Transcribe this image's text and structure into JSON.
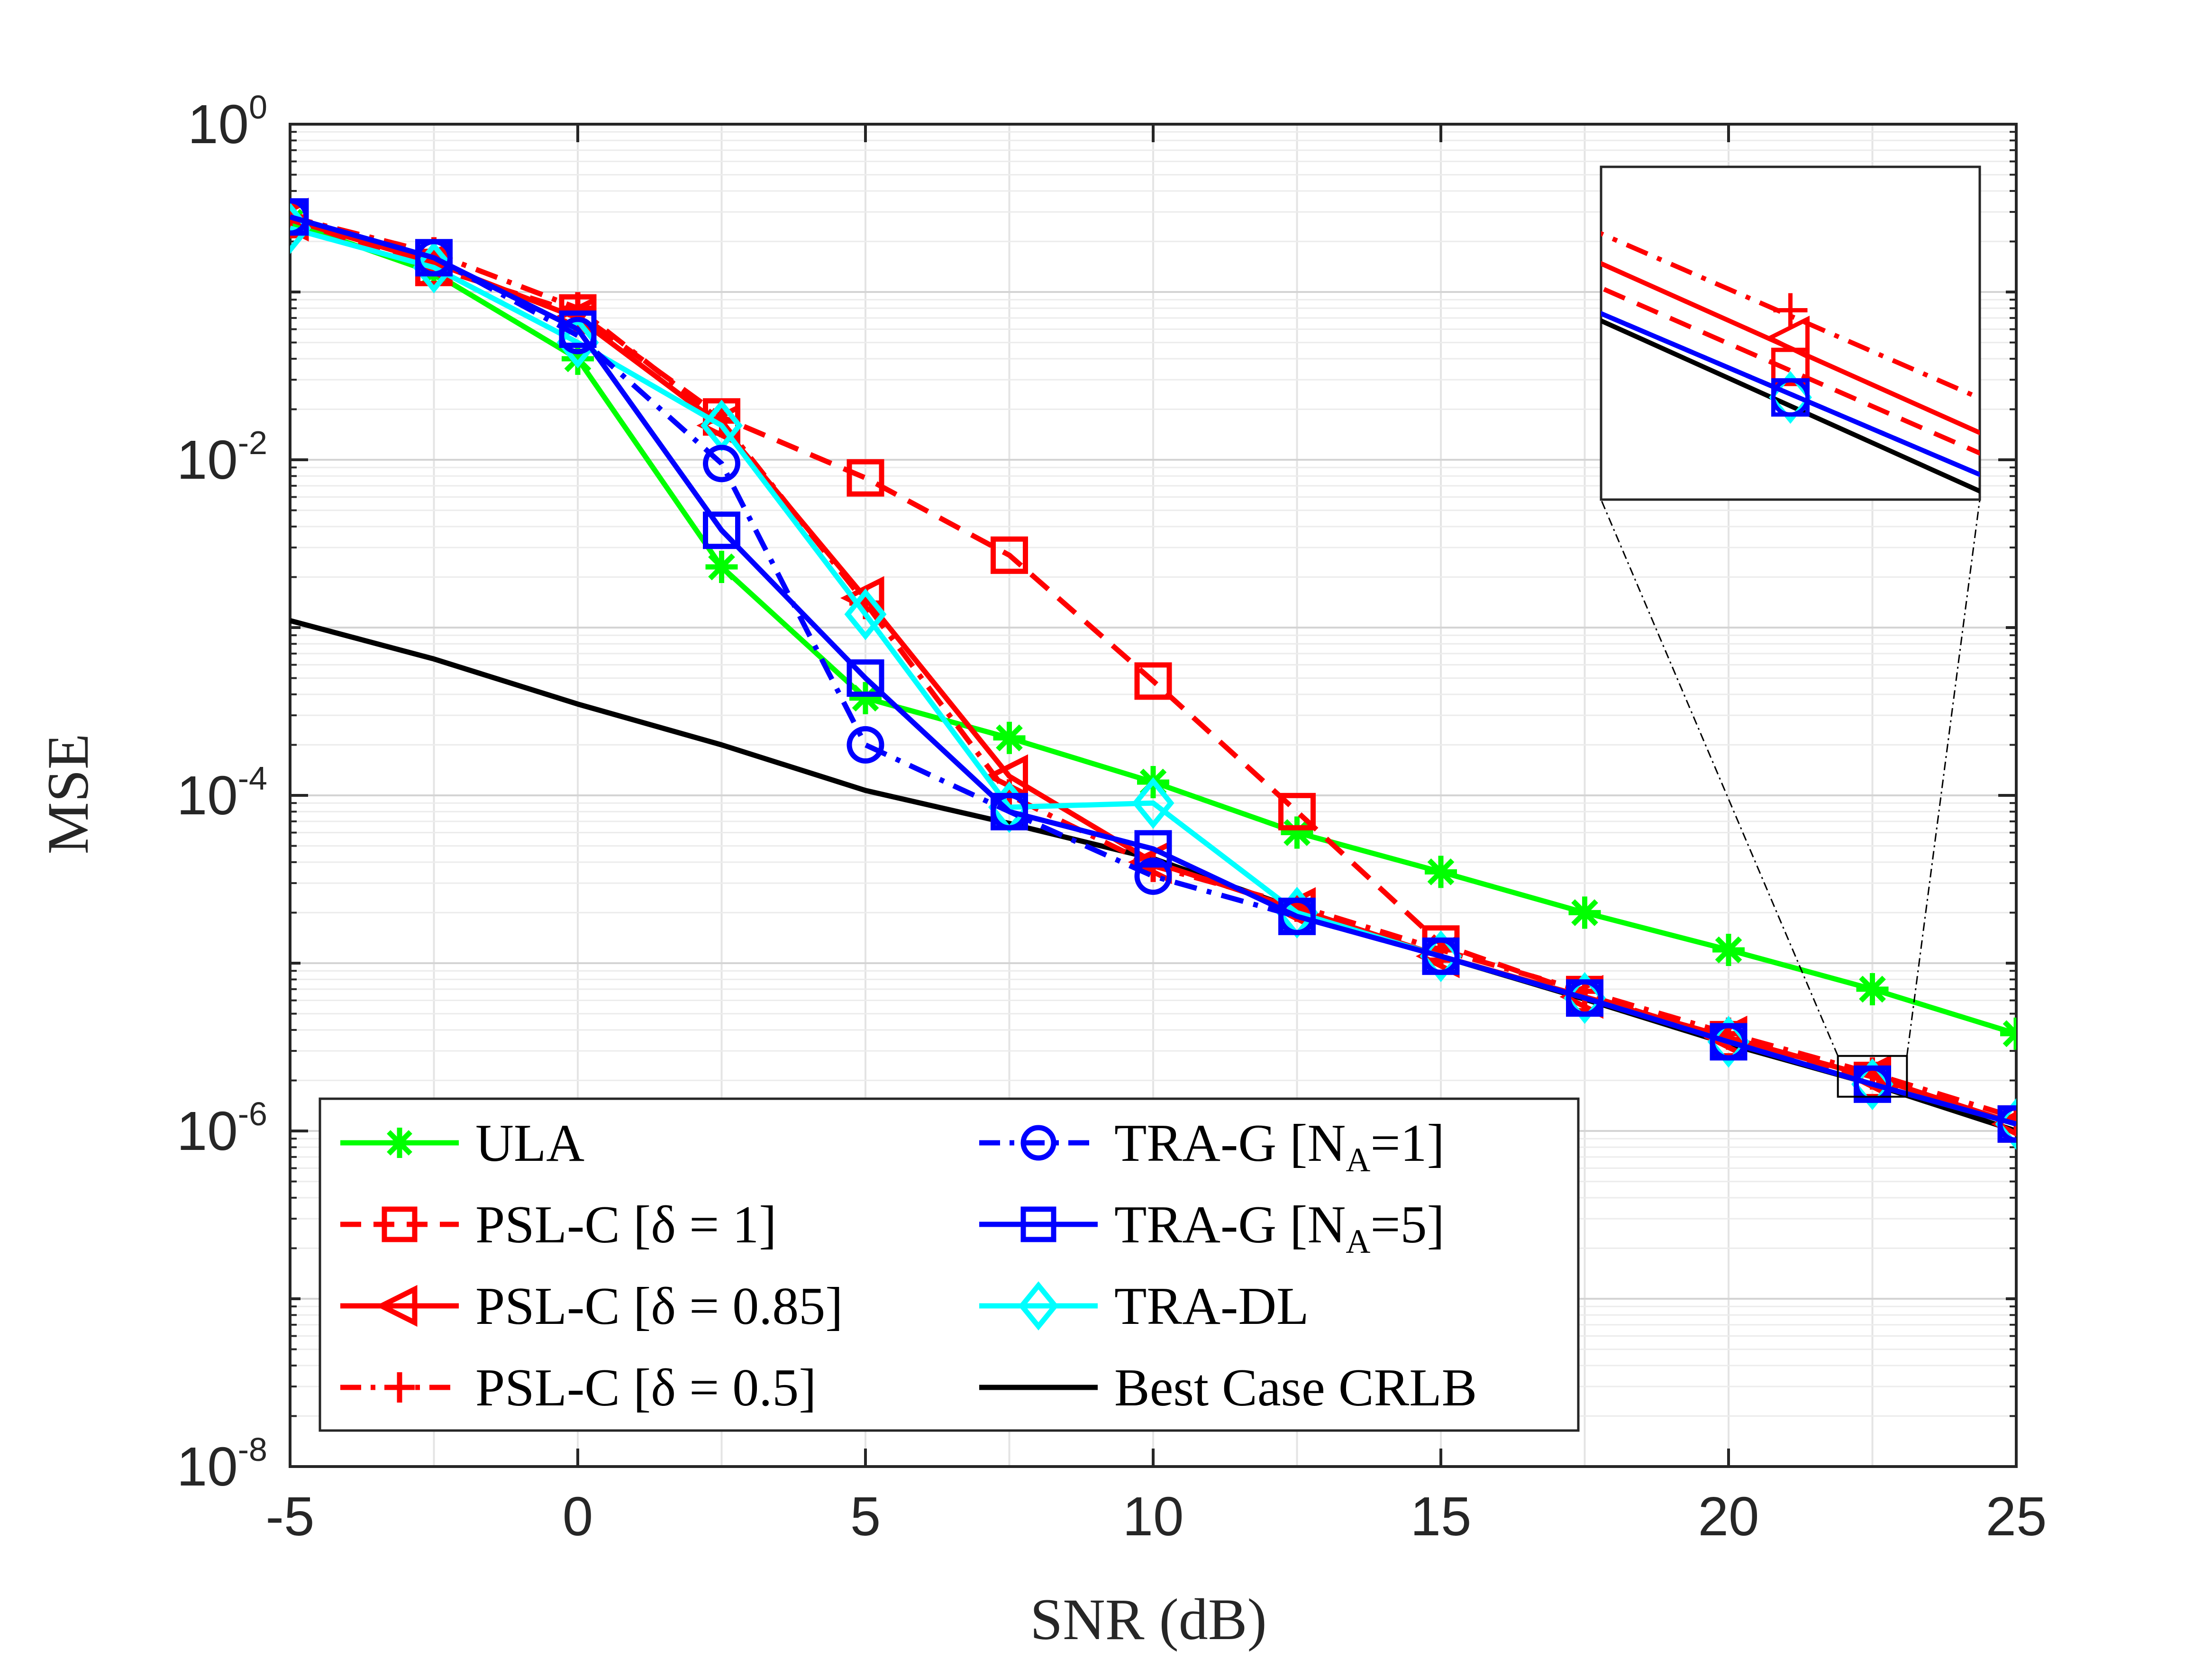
{
  "chart_data": {
    "type": "line",
    "xlabel": "SNR (dB)",
    "ylabel": "MSE",
    "xlim": [
      -5,
      25
    ],
    "ylim": [
      1e-08,
      1
    ],
    "yscale": "log",
    "grid": true,
    "legend_position": "bottom-left",
    "x_ticks": [
      "-5",
      "0",
      "5",
      "10",
      "15",
      "20",
      "25"
    ],
    "y_ticks": [
      {
        "base": "10",
        "exp": "0"
      },
      {
        "base": "10",
        "exp": "-2"
      },
      {
        "base": "10",
        "exp": "-4"
      },
      {
        "base": "10",
        "exp": "-6"
      },
      {
        "base": "10",
        "exp": "-8"
      }
    ],
    "x": [
      -5,
      -2.5,
      0,
      2.5,
      5,
      7.5,
      10,
      12.5,
      15,
      17.5,
      20,
      22.5,
      25
    ],
    "series": [
      {
        "name": "ULA",
        "color": "#00ff00",
        "linestyle": "solid",
        "marker": "asterisk",
        "values": [
          0.26,
          0.13,
          0.04,
          0.0023,
          0.00038,
          0.00022,
          0.00012,
          6e-05,
          3.5e-05,
          2e-05,
          1.2e-05,
          7e-06,
          3.8e-06
        ]
      },
      {
        "name": "PSL-C [δ = 1]",
        "color": "#ff0000",
        "linestyle": "dashed",
        "marker": "square",
        "values": [
          0.27,
          0.14,
          0.075,
          0.018,
          0.0078,
          0.0027,
          0.00048,
          8e-05,
          1.3e-05,
          6.5e-06,
          3.5e-06,
          2e-06,
          1.1e-06
        ]
      },
      {
        "name": "PSL-C [δ = 0.85]",
        "color": "#ff0000",
        "linestyle": "solid",
        "marker": "triangle-left",
        "values": [
          0.27,
          0.15,
          0.07,
          0.016,
          0.0015,
          0.00013,
          4e-05,
          2.1e-05,
          1.1e-05,
          6.3e-06,
          3.6e-06,
          2.1e-06,
          1.1e-06
        ]
      },
      {
        "name": "PSL-C [δ = 0.5]",
        "color": "#ff0000",
        "linestyle": "dashdot",
        "marker": "plus",
        "values": [
          0.28,
          0.17,
          0.08,
          0.017,
          0.0014,
          0.0001,
          3.8e-05,
          2.2e-05,
          1.2e-05,
          6.8e-06,
          3.8e-06,
          2.2e-06,
          1.2e-06
        ]
      },
      {
        "name": "TRA-G [N_A=1]",
        "color": "#0000ff",
        "linestyle": "dashdot",
        "marker": "circle",
        "values": [
          0.28,
          0.16,
          0.055,
          0.0095,
          0.0002,
          8e-05,
          3.3e-05,
          1.9e-05,
          1.1e-05,
          6.2e-06,
          3.4e-06,
          1.9e-06,
          1.1e-06
        ]
      },
      {
        "name": "TRA-G [N_A=5]",
        "color": "#0000ff",
        "linestyle": "solid",
        "marker": "square",
        "values": [
          0.28,
          0.16,
          0.06,
          0.0038,
          0.0005,
          8e-05,
          4.8e-05,
          1.9e-05,
          1.1e-05,
          6.2e-06,
          3.4e-06,
          1.9e-06,
          1.1e-06
        ]
      },
      {
        "name": "TRA-DL",
        "color": "#00ffff",
        "linestyle": "solid",
        "marker": "diamond",
        "values": [
          0.24,
          0.14,
          0.05,
          0.016,
          0.0012,
          8.5e-05,
          9e-05,
          2e-05,
          1.1e-05,
          6.2e-06,
          3.4e-06,
          1.9e-06,
          1.1e-06
        ]
      },
      {
        "name": "Best Case CRLB",
        "color": "#000000",
        "linestyle": "solid",
        "marker": "none",
        "values": [
          0.0011,
          0.00065,
          0.00035,
          0.0002,
          0.000107,
          6.8e-05,
          4.2e-05,
          2.1e-05,
          1.1e-05,
          6.1e-06,
          3.3e-06,
          1.9e-06,
          1e-06
        ]
      }
    ],
    "legend": {
      "left_column": [
        {
          "label": "ULA",
          "series": 0
        },
        {
          "label": "PSL-C [δ = 1]",
          "series": 1
        },
        {
          "label": "PSL-C [δ = 0.85]",
          "series": 2
        },
        {
          "label": "PSL-C [δ = 0.5]",
          "series": 3
        }
      ],
      "right_column": [
        {
          "label": "TRA-G [N",
          "sub": "A",
          "suffix": "=1]",
          "series": 4
        },
        {
          "label": "TRA-G [N",
          "sub": "A",
          "suffix": "=5]",
          "series": 5
        },
        {
          "label": "TRA-DL",
          "series": 6
        },
        {
          "label": "Best Case CRLB",
          "series": 7
        }
      ]
    },
    "inset": {
      "description": "zoom on SNR around 22.5 dB",
      "x_range": [
        21.9,
        23.1
      ],
      "y_range": [
        1.6e-06,
        2.8e-06
      ],
      "position": "top-right"
    }
  }
}
